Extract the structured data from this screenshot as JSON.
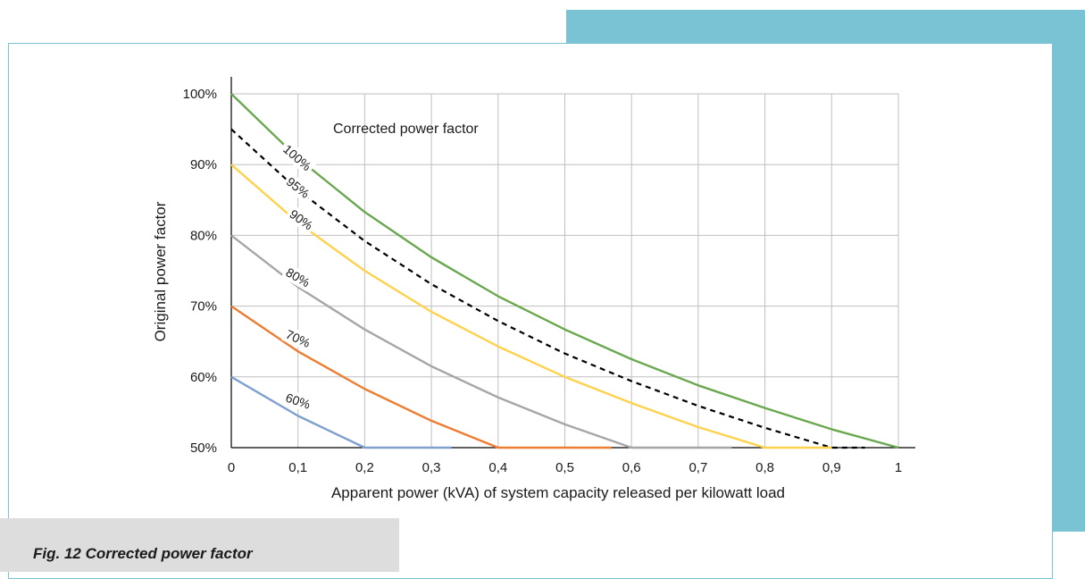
{
  "figure_caption": "Fig. 12 Corrected power factor",
  "colors": {
    "accent": "#79c3d4",
    "caption_bg": "#dddddd",
    "grid": "#bfbfbf",
    "axis": "#000000"
  },
  "chart_data": {
    "type": "line",
    "title": "",
    "annotation": "Corrected power factor",
    "xlabel": "Apparent power (kVA) of system capacity released per kilowatt load",
    "ylabel": "Original power factor",
    "xlim": [
      0,
      1
    ],
    "ylim": [
      0.5,
      1.0
    ],
    "x_ticks": [
      "0",
      "0,1",
      "0,2",
      "0,3",
      "0,4",
      "0,5",
      "0,6",
      "0,7",
      "0,8",
      "0,9",
      "1"
    ],
    "y_ticks": [
      "50%",
      "60%",
      "70%",
      "80%",
      "90%",
      "100%"
    ],
    "grid": true,
    "series": [
      {
        "name": "100%",
        "color": "#6aa84f",
        "dashed": false,
        "x": [
          0,
          0.1,
          0.2,
          0.3,
          0.4,
          0.5,
          0.6,
          0.7,
          0.8,
          0.9,
          1.0
        ],
        "y": [
          1.0,
          0.909,
          0.833,
          0.769,
          0.714,
          0.667,
          0.625,
          0.588,
          0.556,
          0.526,
          0.5
        ]
      },
      {
        "name": "95%",
        "color": "#000000",
        "dashed": true,
        "x": [
          0,
          0.1,
          0.2,
          0.3,
          0.4,
          0.5,
          0.6,
          0.7,
          0.8,
          0.9,
          0.95
        ],
        "y": [
          0.95,
          0.864,
          0.792,
          0.731,
          0.679,
          0.633,
          0.594,
          0.559,
          0.528,
          0.5,
          0.5
        ]
      },
      {
        "name": "90%",
        "color": "#ffd24d",
        "dashed": false,
        "x": [
          0,
          0.1,
          0.2,
          0.3,
          0.4,
          0.5,
          0.6,
          0.7,
          0.8,
          0.9
        ],
        "y": [
          0.9,
          0.818,
          0.75,
          0.692,
          0.643,
          0.6,
          0.563,
          0.529,
          0.5,
          0.5
        ]
      },
      {
        "name": "80%",
        "color": "#a6a6a6",
        "dashed": false,
        "x": [
          0,
          0.1,
          0.2,
          0.3,
          0.4,
          0.5,
          0.6,
          0.7,
          0.75
        ],
        "y": [
          0.8,
          0.727,
          0.667,
          0.615,
          0.571,
          0.533,
          0.5,
          0.5,
          0.5
        ]
      },
      {
        "name": "70%",
        "color": "#ed7d31",
        "dashed": false,
        "x": [
          0,
          0.1,
          0.2,
          0.3,
          0.4,
          0.5,
          0.57
        ],
        "y": [
          0.7,
          0.636,
          0.583,
          0.538,
          0.5,
          0.5,
          0.5
        ]
      },
      {
        "name": "60%",
        "color": "#7f9fcf",
        "dashed": false,
        "x": [
          0,
          0.1,
          0.2,
          0.33
        ],
        "y": [
          0.6,
          0.545,
          0.5,
          0.5
        ]
      }
    ]
  }
}
